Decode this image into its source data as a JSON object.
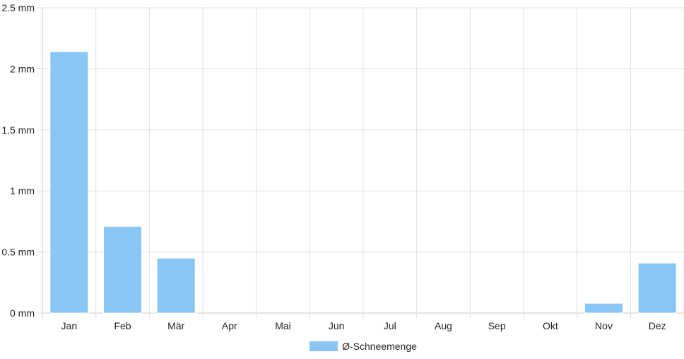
{
  "chart_data": {
    "type": "bar",
    "categories": [
      "Jan",
      "Feb",
      "Mär",
      "Apr",
      "Mai",
      "Jun",
      "Jul",
      "Aug",
      "Sep",
      "Okt",
      "Nov",
      "Dez"
    ],
    "series": [
      {
        "name": "Ø-Schneemenge",
        "values": [
          2.14,
          0.71,
          0.45,
          0,
          0,
          0,
          0,
          0,
          0,
          0,
          0.08,
          0.41
        ],
        "color": "#89c6f3"
      }
    ],
    "y_ticks": [
      "0 mm",
      "0.5 mm",
      "1 mm",
      "1.5 mm",
      "2 mm",
      "2.5 mm"
    ],
    "ylim": [
      0,
      2.5
    ],
    "ytick_step": 0.5,
    "y_unit": "mm",
    "grid": true,
    "legend_position": "bottom",
    "grid_color": "#e0e0e0",
    "axis_color": "#c8c8c8"
  }
}
